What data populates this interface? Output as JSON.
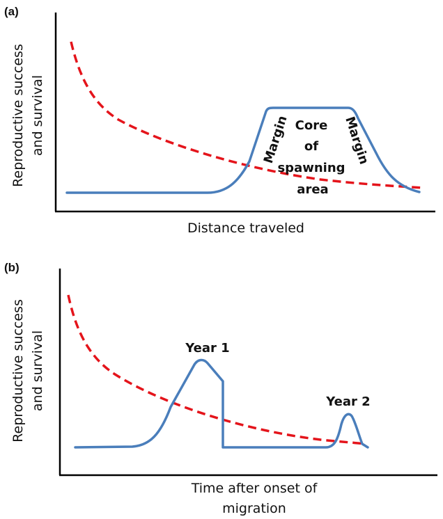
{
  "panel_a": {
    "label": "(a)",
    "y_label_line1": "Reproductive success",
    "y_label_line2": "and survival",
    "x_label": "Distance traveled",
    "annotations": {
      "margin_left": "Margin",
      "margin_right": "Margin",
      "core_line1": "Core",
      "core_line2": "of",
      "core_line3": "spawning",
      "core_line4": "area"
    },
    "colors": {
      "solid_curve": "#4a7ebb",
      "dashed_curve": "#e4141b"
    }
  },
  "panel_b": {
    "label": "(b)",
    "y_label_line1": "Reproductive success",
    "y_label_line2": "and survival",
    "x_label_line1": "Time after onset of",
    "x_label_line2": "migration",
    "annotations": {
      "peak1": "Year 1",
      "peak2": "Year 2"
    },
    "colors": {
      "solid_curve": "#4a7ebb",
      "dashed_curve": "#e4141b"
    }
  }
}
